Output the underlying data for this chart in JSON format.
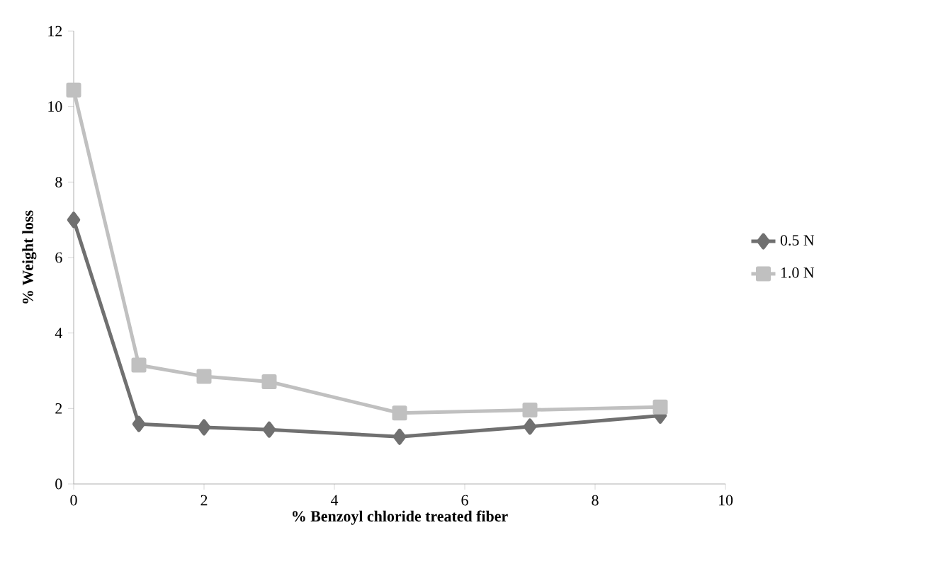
{
  "chart_data": {
    "type": "line",
    "xlabel": "% Benzoyl chloride treated fiber",
    "ylabel": "% Weight loss",
    "xlim": [
      0,
      10
    ],
    "xticks": [
      0,
      2,
      4,
      6,
      8,
      10
    ],
    "ylim": [
      0,
      12
    ],
    "yticks": [
      0,
      2,
      4,
      6,
      8,
      10,
      12
    ],
    "grid": false,
    "legend": "right",
    "line_style": "solid",
    "series": [
      {
        "name": "0.5 N",
        "color": "#707070",
        "marker": "diamond",
        "x": [
          0,
          1,
          2,
          3,
          5,
          7,
          9
        ],
        "values": [
          7.0,
          1.59,
          1.5,
          1.44,
          1.25,
          1.52,
          1.81
        ]
      },
      {
        "name": "1.0 N",
        "color": "#c0c0c0",
        "marker": "square",
        "x": [
          0,
          1,
          2,
          3,
          5,
          7,
          9
        ],
        "values": [
          10.44,
          3.15,
          2.85,
          2.71,
          1.88,
          1.96,
          2.04
        ]
      }
    ]
  }
}
